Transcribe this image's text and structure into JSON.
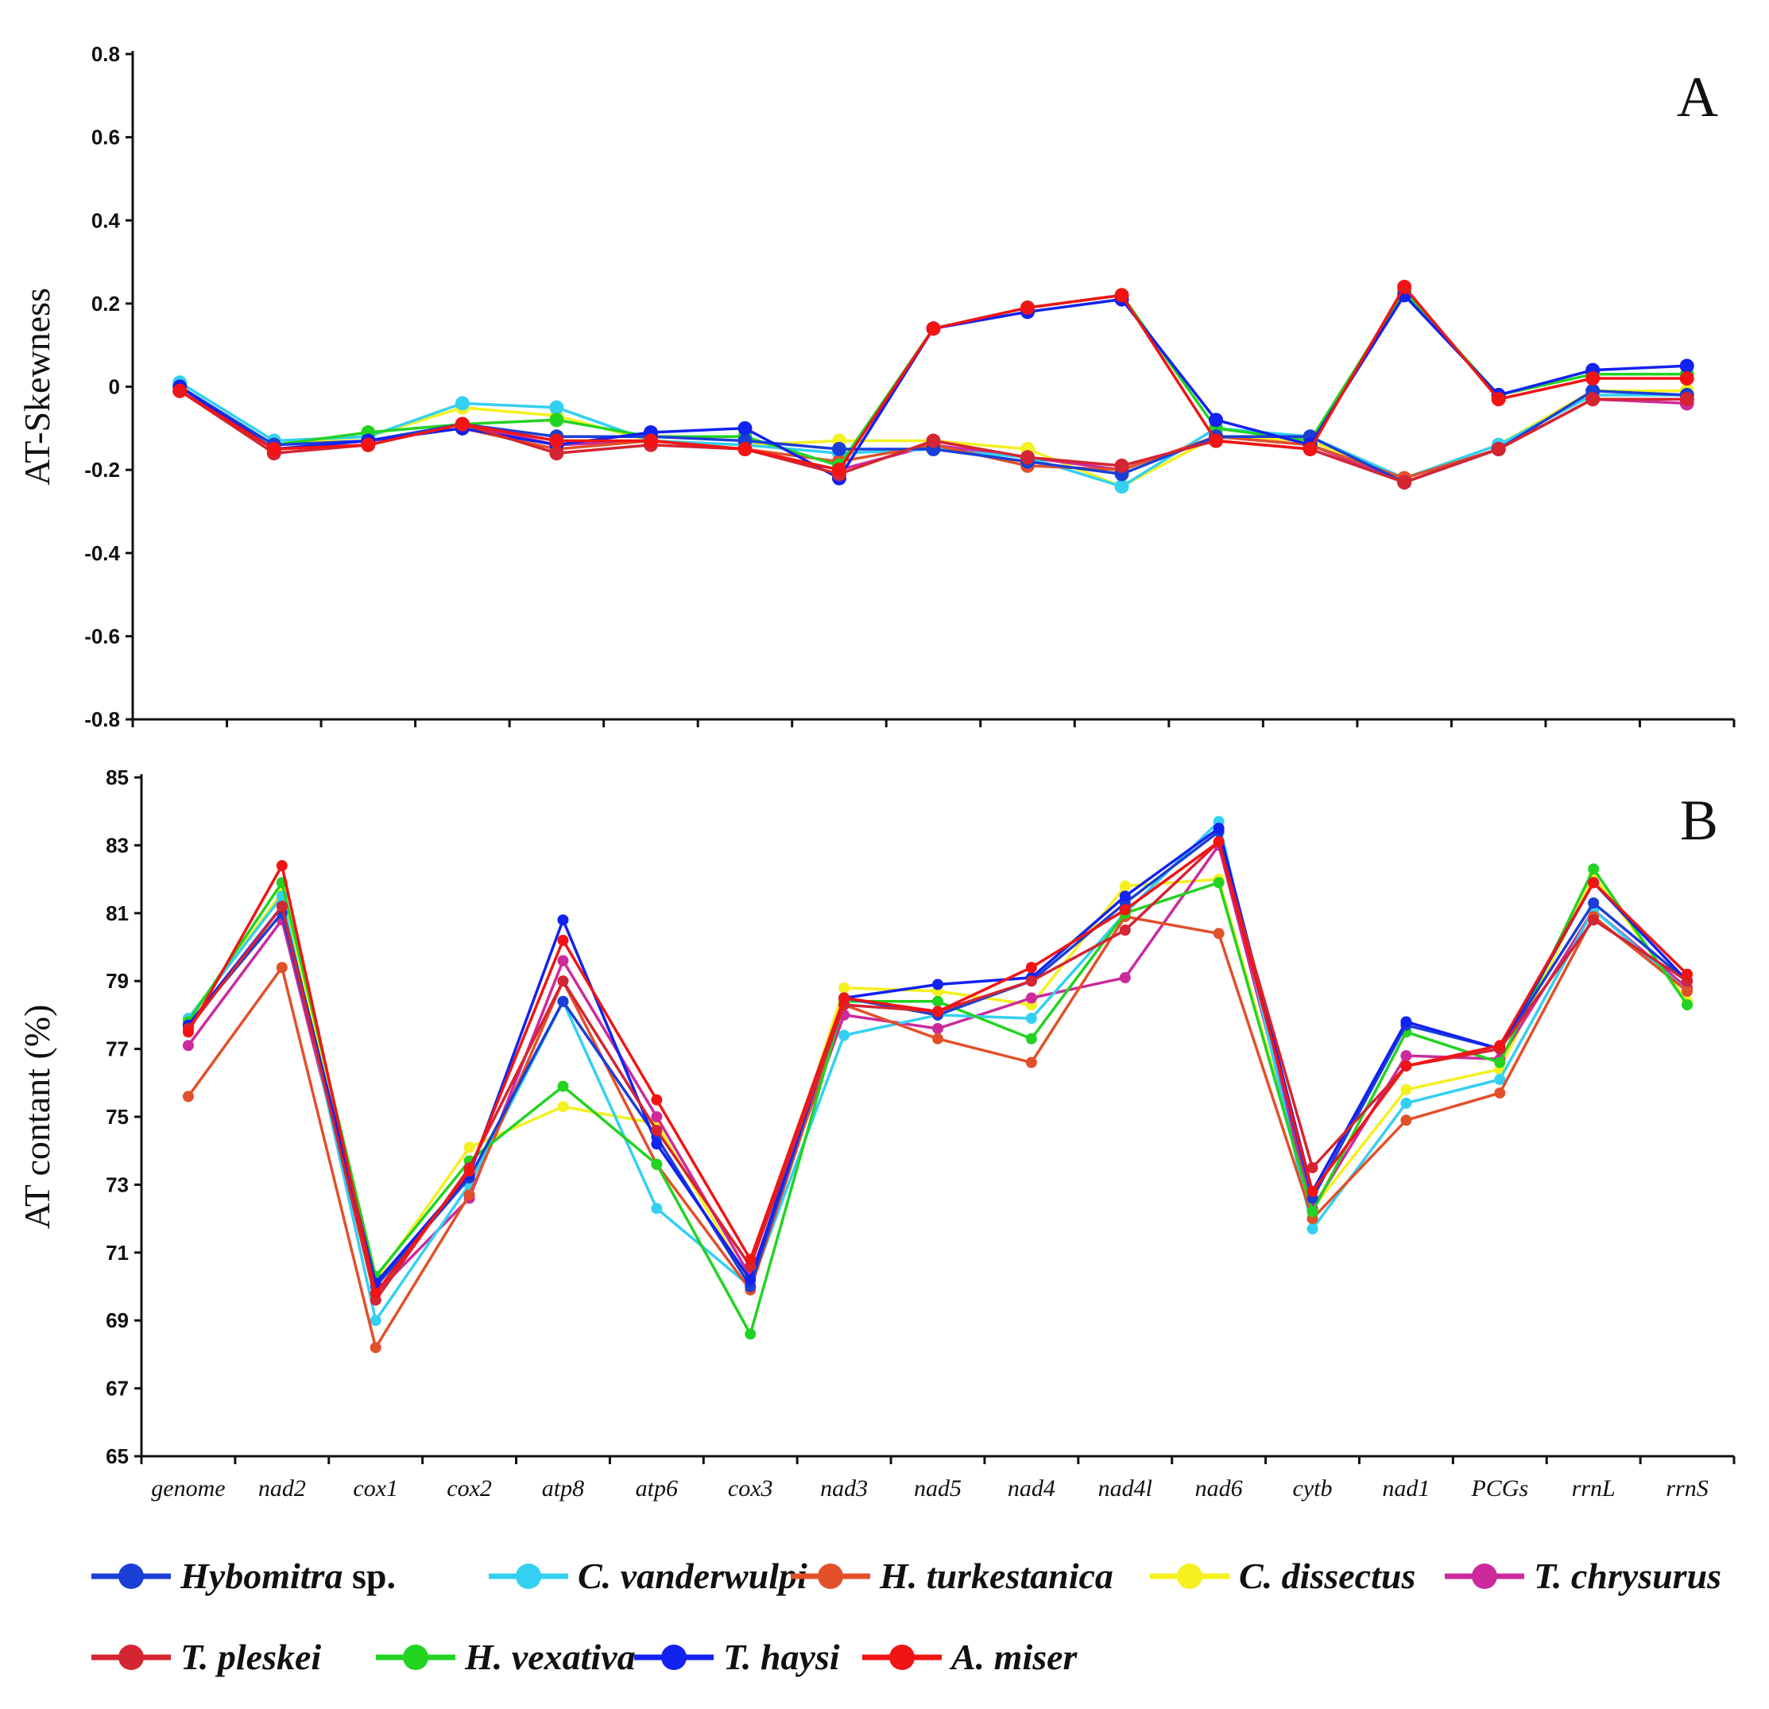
{
  "chart_data": [
    {
      "panel": "A",
      "type": "line",
      "ylabel": "AT-Skewness",
      "xlabel": "",
      "ylim": [
        -0.8,
        0.8
      ],
      "yticks": [
        "0.8",
        "0.6",
        "0.4",
        "0.2",
        "0",
        "-0.2",
        "-0.4",
        "-0.6",
        "-0.8"
      ],
      "categories": [
        "genome",
        "nad2",
        "cox1",
        "cox2",
        "atp8",
        "atp6",
        "cox3",
        "nad3",
        "nad5",
        "nad4",
        "nad4l",
        "nad6",
        "cytb",
        "nad1",
        "PCGs",
        "rrnL",
        "rrnS"
      ],
      "series": [
        {
          "name": "Hybomitra sp.",
          "values": [
            0.0,
            -0.14,
            -0.13,
            -0.09,
            -0.12,
            -0.12,
            -0.13,
            -0.15,
            -0.15,
            -0.18,
            -0.21,
            -0.12,
            -0.12,
            -0.23,
            -0.15,
            -0.01,
            -0.02
          ]
        },
        {
          "name": "C. vanderwulpi",
          "values": [
            0.01,
            -0.13,
            -0.12,
            -0.04,
            -0.05,
            -0.13,
            -0.14,
            -0.16,
            -0.15,
            -0.17,
            -0.24,
            -0.1,
            -0.12,
            -0.22,
            -0.14,
            -0.02,
            -0.02
          ]
        },
        {
          "name": "H. turkestanica",
          "values": [
            -0.01,
            -0.15,
            -0.13,
            -0.1,
            -0.15,
            -0.13,
            -0.15,
            -0.18,
            -0.14,
            -0.19,
            -0.2,
            -0.12,
            -0.14,
            -0.22,
            -0.15,
            -0.03,
            -0.03
          ]
        },
        {
          "name": "C. dissectus",
          "values": [
            0.0,
            -0.14,
            -0.12,
            -0.05,
            -0.07,
            -0.13,
            -0.14,
            -0.13,
            -0.13,
            -0.15,
            -0.24,
            -0.12,
            -0.13,
            -0.22,
            -0.14,
            -0.01,
            -0.01
          ]
        },
        {
          "name": "T. chrysurus",
          "values": [
            -0.01,
            -0.15,
            -0.14,
            -0.09,
            -0.14,
            -0.13,
            -0.15,
            -0.2,
            -0.14,
            -0.17,
            -0.2,
            -0.12,
            -0.14,
            -0.23,
            -0.15,
            -0.03,
            -0.04
          ]
        },
        {
          "name": "T. pleskei",
          "values": [
            -0.01,
            -0.16,
            -0.14,
            -0.09,
            -0.16,
            -0.14,
            -0.15,
            -0.21,
            -0.13,
            -0.17,
            -0.19,
            -0.13,
            -0.15,
            -0.23,
            -0.15,
            -0.03,
            -0.03
          ]
        },
        {
          "name": "H. vexativa",
          "values": [
            0.0,
            -0.14,
            -0.11,
            -0.09,
            -0.08,
            -0.12,
            -0.12,
            -0.19,
            0.14,
            0.19,
            0.22,
            -0.1,
            -0.13,
            0.23,
            -0.02,
            0.03,
            0.03
          ]
        },
        {
          "name": "T. haysi",
          "values": [
            0.0,
            -0.15,
            -0.13,
            -0.1,
            -0.14,
            -0.11,
            -0.1,
            -0.22,
            0.14,
            0.18,
            0.21,
            -0.08,
            -0.14,
            0.22,
            -0.02,
            0.04,
            0.05
          ]
        },
        {
          "name": "A. miser",
          "values": [
            -0.01,
            -0.15,
            -0.14,
            -0.09,
            -0.13,
            -0.13,
            -0.15,
            -0.2,
            0.14,
            0.19,
            0.22,
            -0.13,
            -0.15,
            0.24,
            -0.03,
            0.02,
            0.02
          ]
        }
      ]
    },
    {
      "panel": "B",
      "type": "line",
      "ylabel": "AT contant (%)",
      "xlabel": "",
      "ylim": [
        65,
        85
      ],
      "yticks": [
        "85",
        "83",
        "81",
        "79",
        "77",
        "75",
        "73",
        "71",
        "69",
        "67",
        "65"
      ],
      "categories": [
        "genome",
        "nad2",
        "cox1",
        "cox2",
        "atp8",
        "atp6",
        "cox3",
        "nad3",
        "nad5",
        "nad4",
        "nad4l",
        "nad6",
        "cytb",
        "nad1",
        "PCGs",
        "rrnL",
        "rrnS"
      ],
      "series": [
        {
          "name": "Hybomitra sp.",
          "values": [
            77.7,
            81.0,
            70.0,
            73.2,
            78.4,
            74.4,
            70.0,
            78.5,
            78.0,
            79.0,
            81.3,
            83.4,
            72.6,
            77.7,
            77.0,
            81.3,
            79.0
          ]
        },
        {
          "name": "C. vanderwulpi",
          "values": [
            77.9,
            81.5,
            69.0,
            73.0,
            78.4,
            72.3,
            70.0,
            77.4,
            78.0,
            77.9,
            81.0,
            83.7,
            71.7,
            75.4,
            76.1,
            81.1,
            78.7
          ]
        },
        {
          "name": "H. turkestanica",
          "values": [
            75.6,
            79.4,
            68.2,
            72.7,
            79.0,
            73.6,
            69.9,
            78.3,
            77.3,
            76.6,
            80.9,
            80.4,
            72.0,
            74.9,
            75.7,
            80.9,
            78.7
          ]
        },
        {
          "name": "C. dissectus",
          "values": [
            77.9,
            81.6,
            70.2,
            74.1,
            75.3,
            74.8,
            70.1,
            78.8,
            78.7,
            78.3,
            81.8,
            82.0,
            72.3,
            75.8,
            76.4,
            82.1,
            78.4
          ]
        },
        {
          "name": "T. chrysurus",
          "values": [
            77.1,
            80.8,
            69.8,
            72.6,
            79.6,
            75.0,
            70.3,
            78.0,
            77.6,
            78.5,
            79.1,
            83.0,
            72.3,
            76.8,
            76.7,
            81.1,
            78.8
          ]
        },
        {
          "name": "T. pleskei",
          "values": [
            77.6,
            81.2,
            69.6,
            73.5,
            79.0,
            74.6,
            70.6,
            78.3,
            78.1,
            79.0,
            80.5,
            83.1,
            73.5,
            76.5,
            77.0,
            80.8,
            79.0
          ]
        },
        {
          "name": "H. vexativa",
          "values": [
            77.8,
            81.9,
            70.3,
            73.7,
            75.9,
            73.6,
            68.6,
            78.4,
            78.4,
            77.3,
            81.0,
            81.9,
            72.2,
            77.5,
            76.6,
            82.3,
            78.3
          ]
        },
        {
          "name": "T. haysi",
          "values": [
            77.7,
            81.2,
            70.1,
            73.3,
            80.8,
            74.2,
            70.2,
            78.5,
            78.9,
            79.1,
            81.5,
            83.5,
            72.8,
            77.8,
            77.0,
            81.9,
            79.0
          ]
        },
        {
          "name": "A. miser",
          "values": [
            77.5,
            82.4,
            69.8,
            73.4,
            80.2,
            75.5,
            70.8,
            78.5,
            78.1,
            79.4,
            81.1,
            83.1,
            72.8,
            76.5,
            77.1,
            81.9,
            79.2
          ]
        }
      ]
    }
  ],
  "panel_labels": {
    "a": "A",
    "b": "B"
  },
  "legend": [
    {
      "italic": "Hybomitra",
      "plain": " sp.",
      "color": "#1b3fd6"
    },
    {
      "italic": "C. vanderwulpi",
      "plain": "",
      "color": "#33d0f2"
    },
    {
      "italic": "H. turkestanica",
      "plain": "",
      "color": "#e2502a"
    },
    {
      "italic": "C. dissectus",
      "plain": "",
      "color": "#f5f01f"
    },
    {
      "italic": "T. chrysurus",
      "plain": "",
      "color": "#cc2a9c"
    },
    {
      "italic": "T. pleskei",
      "plain": "",
      "color": "#d42532"
    },
    {
      "italic": "H. vexativa",
      "plain": "",
      "color": "#22d322"
    },
    {
      "italic": "T. haysi",
      "plain": "",
      "color": "#1222f0"
    },
    {
      "italic": "A. miser",
      "plain": "",
      "color": "#f21414"
    }
  ]
}
